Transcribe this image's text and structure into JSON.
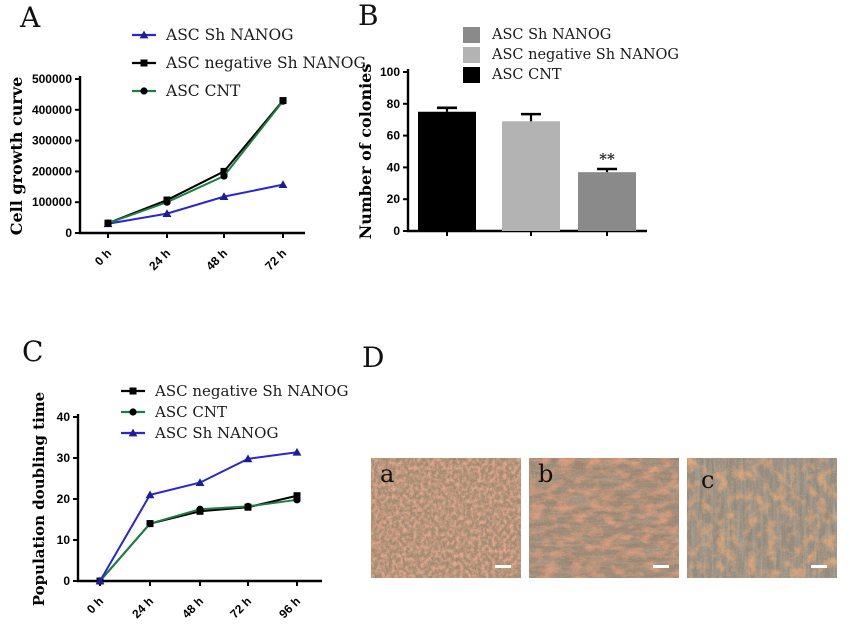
{
  "panels": {
    "a": {
      "label": "A"
    },
    "b": {
      "label": "B"
    },
    "c": {
      "label": "C"
    },
    "d": {
      "label": "D"
    }
  },
  "colors": {
    "line_blue": "#2727d3",
    "line_green": "#1c7f44",
    "line_black": "#000000",
    "bar_dark_gray": "#8a8a8a",
    "bar_light_gray": "#b3b3b3",
    "bar_black": "#000000",
    "axis": "#000000",
    "background": "#ffffff"
  },
  "chart_data": [
    {
      "id": "cell-growth",
      "type": "line",
      "title": "",
      "xlabel": "",
      "ylabel": "Cell growth curve",
      "categories": [
        "0 h",
        "24 h",
        "48 h",
        "72 h"
      ],
      "ylim": [
        0,
        500000
      ],
      "yticks": [
        0,
        100000,
        200000,
        300000,
        400000,
        500000
      ],
      "grid": false,
      "legend_position": "top-right",
      "series": [
        {
          "name": "ASC Sh NANOG",
          "color": "#2727d3",
          "marker": "triangle",
          "marker_color": "#1c1c96",
          "values": [
            30000,
            63000,
            118000,
            157000
          ]
        },
        {
          "name": "ASC negative Sh NANOG",
          "color": "#000000",
          "marker": "square",
          "marker_color": "#000000",
          "values": [
            32000,
            107000,
            200000,
            430000
          ]
        },
        {
          "name": "ASC CNT",
          "color": "#1c7f44",
          "marker": "circle",
          "marker_color": "#000000",
          "values": [
            32000,
            100000,
            185000,
            428000
          ]
        }
      ]
    },
    {
      "id": "colonies",
      "type": "bar",
      "title": "",
      "xlabel": "",
      "ylabel": "Number of colonies",
      "ylim": [
        0,
        100
      ],
      "yticks": [
        0,
        20,
        40,
        60,
        80,
        100
      ],
      "grid": false,
      "legend_position": "top",
      "legend": [
        {
          "name": "ASC Sh NANOG",
          "color": "#8a8a8a"
        },
        {
          "name": "ASC negative Sh NANOG",
          "color": "#b3b3b3"
        },
        {
          "name": "ASC CNT",
          "color": "#000000"
        }
      ],
      "bars": [
        {
          "group": "ASC CNT",
          "color": "#000000",
          "value": 75,
          "error": 2.5,
          "annotation": ""
        },
        {
          "group": "ASC negative Sh NANOG",
          "color": "#b3b3b3",
          "value": 69,
          "error": 4.5,
          "annotation": ""
        },
        {
          "group": "ASC Sh NANOG",
          "color": "#8a8a8a",
          "value": 37,
          "error": 2,
          "annotation": "**"
        }
      ]
    },
    {
      "id": "doubling-time",
      "type": "line",
      "title": "",
      "xlabel": "",
      "ylabel": "Population doubling time",
      "categories": [
        "0 h",
        "24 h",
        "48 h",
        "72 h",
        "96 h"
      ],
      "ylim": [
        0,
        40
      ],
      "yticks": [
        0,
        10,
        20,
        30,
        40
      ],
      "grid": false,
      "legend_position": "top",
      "series": [
        {
          "name": "ASC negative Sh NANOG",
          "color": "#000000",
          "marker": "square",
          "marker_color": "#000000",
          "values": [
            0,
            14,
            17,
            18,
            20.8
          ]
        },
        {
          "name": "ASC CNT",
          "color": "#1c7f44",
          "marker": "circle",
          "marker_color": "#000000",
          "values": [
            0,
            14,
            17.5,
            18.2,
            19.8
          ]
        },
        {
          "name": "ASC Sh NANOG",
          "color": "#2727d3",
          "marker": "triangle",
          "marker_color": "#1c1c96",
          "values": [
            0,
            21,
            24,
            29.8,
            31.4
          ]
        }
      ]
    }
  ],
  "panel_d": {
    "images": [
      {
        "label": "a"
      },
      {
        "label": "b"
      },
      {
        "label": "c"
      }
    ]
  }
}
